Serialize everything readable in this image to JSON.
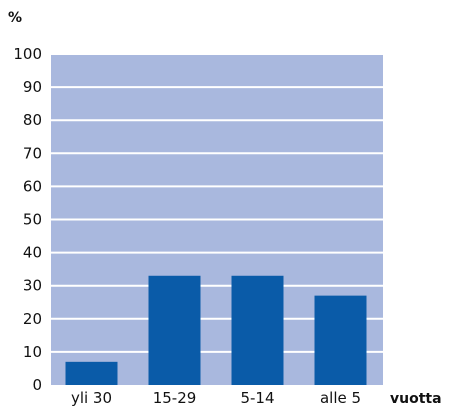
{
  "chart_data": {
    "type": "bar",
    "categories": [
      "yli 30",
      "15-29",
      "5-14",
      "alle 5"
    ],
    "values": [
      7,
      33,
      33,
      27
    ],
    "ylabel": "%",
    "xlabel": "vuotta",
    "ylim": [
      0,
      100
    ],
    "yticks": [
      0,
      10,
      20,
      30,
      40,
      50,
      60,
      70,
      80,
      90,
      100
    ],
    "grid": true,
    "colors": {
      "plot_background": "#a9b8de",
      "bar": "#0a5ba8",
      "gridline": "#ffffff"
    }
  }
}
